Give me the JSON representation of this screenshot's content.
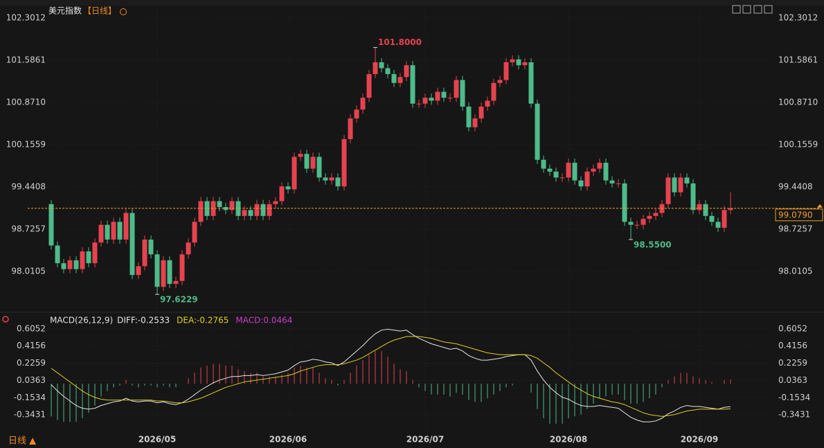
{
  "title": "美元指数",
  "title_tag": "【日线】",
  "period_label": "日线 ▲",
  "chart_data": [
    {
      "type": "candlestick",
      "categories": [
        null,
        null,
        null,
        null,
        null,
        null,
        null,
        null,
        null,
        null,
        null,
        null,
        null,
        null,
        null,
        null,
        null,
        "2026/05",
        null,
        null,
        null,
        null,
        null,
        null,
        null,
        null,
        null,
        null,
        null,
        null,
        null,
        null,
        null,
        null,
        null,
        null,
        null,
        null,
        "2026/06",
        null,
        null,
        null,
        null,
        null,
        null,
        null,
        null,
        null,
        null,
        null,
        null,
        null,
        null,
        null,
        null,
        null,
        null,
        null,
        null,
        null,
        "2026/07",
        null,
        null,
        null,
        null,
        null,
        null,
        null,
        null,
        null,
        null,
        null,
        null,
        null,
        null,
        null,
        null,
        null,
        null,
        null,
        null,
        null,
        null,
        "2026/08",
        null,
        null,
        null,
        null,
        null,
        null,
        null,
        null,
        null,
        null,
        null,
        null,
        null,
        null,
        null,
        null,
        null,
        null,
        null,
        null,
        "2026/09",
        null,
        null,
        null,
        null,
        null
      ],
      "open": [
        99.15,
        98.45,
        98.15,
        98.05,
        98.2,
        98.05,
        98.35,
        98.15,
        98.5,
        98.8,
        98.55,
        98.85,
        98.55,
        99.0,
        97.95,
        98.1,
        98.55,
        98.3,
        97.75,
        98.2,
        97.8,
        97.85,
        98.3,
        98.5,
        98.85,
        99.2,
        98.95,
        99.2,
        99.1,
        99.05,
        99.2,
        98.95,
        99.05,
        98.95,
        99.15,
        98.95,
        99.15,
        99.2,
        99.45,
        99.4,
        99.95,
        100.0,
        99.75,
        99.95,
        99.6,
        99.55,
        99.6,
        99.45,
        100.25,
        100.6,
        100.75,
        100.95,
        101.35,
        101.55,
        101.45,
        101.35,
        101.2,
        101.3,
        101.5,
        100.85,
        100.85,
        100.95,
        100.9,
        101.05,
        100.95,
        100.95,
        101.25,
        100.8,
        100.45,
        100.6,
        100.8,
        100.9,
        101.2,
        101.25,
        101.55,
        101.6,
        101.5,
        101.55,
        100.85,
        99.9,
        99.75,
        99.7,
        99.6,
        99.6,
        99.85,
        99.55,
        99.45,
        99.7,
        99.75,
        99.85,
        99.55,
        99.5,
        99.5,
        98.85,
        98.8,
        98.8,
        98.9,
        98.95,
        99.0,
        99.15,
        99.6,
        99.35,
        99.6,
        99.5,
        99.05,
        99.15,
        98.95,
        98.85,
        98.75,
        99.05
      ],
      "high": [
        99.22,
        98.52,
        98.22,
        98.27,
        98.27,
        98.42,
        98.42,
        98.57,
        98.87,
        98.87,
        98.92,
        98.92,
        99.07,
        99.07,
        98.17,
        98.62,
        98.62,
        98.37,
        98.27,
        98.27,
        97.92,
        98.37,
        98.57,
        98.92,
        99.27,
        99.27,
        99.27,
        99.27,
        99.17,
        99.27,
        99.27,
        99.12,
        99.12,
        99.22,
        99.22,
        99.22,
        99.27,
        99.52,
        99.52,
        100.02,
        100.07,
        100.07,
        100.02,
        100.02,
        99.67,
        99.67,
        99.67,
        100.32,
        100.67,
        100.82,
        101.02,
        101.42,
        101.8,
        101.62,
        101.52,
        101.42,
        101.37,
        101.57,
        101.57,
        100.92,
        101.02,
        101.02,
        101.12,
        101.12,
        101.02,
        101.32,
        101.32,
        100.87,
        100.67,
        100.87,
        100.97,
        101.27,
        101.32,
        101.62,
        101.67,
        101.67,
        101.62,
        101.62,
        100.92,
        99.97,
        99.82,
        99.77,
        99.67,
        99.92,
        99.92,
        99.62,
        99.77,
        99.82,
        99.92,
        99.92,
        99.62,
        99.57,
        99.57,
        98.92,
        98.87,
        98.97,
        99.02,
        99.07,
        99.22,
        99.67,
        99.67,
        99.67,
        99.67,
        99.57,
        99.22,
        99.22,
        99.02,
        98.92,
        99.12,
        99.35
      ],
      "low": [
        98.38,
        98.08,
        97.98,
        97.98,
        97.98,
        97.98,
        98.08,
        98.08,
        98.43,
        98.48,
        98.48,
        98.48,
        98.48,
        97.88,
        97.88,
        98.03,
        98.23,
        97.6229,
        97.68,
        97.73,
        97.73,
        97.78,
        98.23,
        98.43,
        98.78,
        98.88,
        98.88,
        99.03,
        98.98,
        98.98,
        98.88,
        98.88,
        98.88,
        98.88,
        98.88,
        98.88,
        99.08,
        99.13,
        99.33,
        99.33,
        99.88,
        99.68,
        99.68,
        99.53,
        99.48,
        99.48,
        99.38,
        99.38,
        100.18,
        100.53,
        100.68,
        100.88,
        101.28,
        101.38,
        101.28,
        101.13,
        101.13,
        101.23,
        100.78,
        100.78,
        100.78,
        100.83,
        100.83,
        100.88,
        100.88,
        100.88,
        100.73,
        100.38,
        100.38,
        100.53,
        100.73,
        100.83,
        101.13,
        101.18,
        101.48,
        101.43,
        101.43,
        100.78,
        99.83,
        99.68,
        99.63,
        99.53,
        99.53,
        99.53,
        99.48,
        99.38,
        99.38,
        99.63,
        99.68,
        99.48,
        99.43,
        99.43,
        98.78,
        98.55,
        98.73,
        98.73,
        98.83,
        98.88,
        98.93,
        99.08,
        99.28,
        99.28,
        99.43,
        98.98,
        98.98,
        98.88,
        98.78,
        98.68,
        98.68,
        98.98
      ],
      "close": [
        98.45,
        98.15,
        98.05,
        98.2,
        98.05,
        98.35,
        98.15,
        98.5,
        98.8,
        98.55,
        98.85,
        98.55,
        99.0,
        97.95,
        98.1,
        98.55,
        98.3,
        97.75,
        98.2,
        97.8,
        97.85,
        98.3,
        98.5,
        98.85,
        99.2,
        98.95,
        99.2,
        99.1,
        99.05,
        99.2,
        98.95,
        99.05,
        98.95,
        99.15,
        98.95,
        99.15,
        99.2,
        99.45,
        99.4,
        99.95,
        100.0,
        99.75,
        99.95,
        99.6,
        99.55,
        99.6,
        99.45,
        100.25,
        100.6,
        100.75,
        100.95,
        101.35,
        101.55,
        101.45,
        101.35,
        101.2,
        101.3,
        101.5,
        100.85,
        100.85,
        100.95,
        100.9,
        101.05,
        100.95,
        100.95,
        101.25,
        100.8,
        100.45,
        100.6,
        100.8,
        100.9,
        101.2,
        101.25,
        101.55,
        101.6,
        101.5,
        101.55,
        100.85,
        99.9,
        99.75,
        99.7,
        99.6,
        99.6,
        99.85,
        99.55,
        99.45,
        99.7,
        99.75,
        99.85,
        99.55,
        99.5,
        99.5,
        98.85,
        98.8,
        98.8,
        98.9,
        98.95,
        99.0,
        99.15,
        99.6,
        99.35,
        99.6,
        99.5,
        99.05,
        99.15,
        98.95,
        98.85,
        98.75,
        99.05,
        99.079
      ],
      "last_close_label": "99.0790",
      "up_color": "#e5434f",
      "down_color": "#4dbb8a",
      "last_color": "#f0a030",
      "annotations": [
        {
          "value": 101.8,
          "label": "101.8000",
          "color": "#e5434f"
        },
        {
          "value": 97.6229,
          "label": "97.6229",
          "color": "#4dbb8a"
        },
        {
          "value": 98.55,
          "label": "98.5500",
          "color": "#4dbb8a"
        }
      ],
      "ylim": [
        97.39,
        102.51
      ],
      "yticks": [
        102.3012,
        101.5861,
        {
          "value": 100.871,
          "label": "100.8710"
        },
        100.1559,
        99.4408,
        98.7257,
        98.0105
      ],
      "grid": true
    },
    {
      "type": "macd",
      "header": "MACD(26,12,9)",
      "up_color": "#e5434f",
      "down_color": "#4dbb8a",
      "series": [
        {
          "name": "DIFF:",
          "color": "#e8e8e8",
          "values": [
            -0.01,
            -0.08,
            -0.14,
            -0.19,
            -0.24,
            -0.27,
            -0.28,
            -0.27,
            -0.24,
            -0.22,
            -0.2,
            -0.19,
            -0.16,
            -0.19,
            -0.2,
            -0.19,
            -0.19,
            -0.21,
            -0.2,
            -0.22,
            -0.23,
            -0.21,
            -0.17,
            -0.12,
            -0.07,
            -0.03,
            0.01,
            0.04,
            0.06,
            0.08,
            0.08,
            0.09,
            0.09,
            0.1,
            0.09,
            0.1,
            0.11,
            0.13,
            0.15,
            0.2,
            0.24,
            0.25,
            0.27,
            0.26,
            0.24,
            0.23,
            0.2,
            0.24,
            0.3,
            0.36,
            0.42,
            0.49,
            0.55,
            0.59,
            0.6,
            0.59,
            0.58,
            0.59,
            0.54,
            0.5,
            0.47,
            0.44,
            0.42,
            0.4,
            0.38,
            0.39,
            0.36,
            0.31,
            0.28,
            0.26,
            0.26,
            0.27,
            0.28,
            0.3,
            0.31,
            0.32,
            0.32,
            0.26,
            0.14,
            0.04,
            -0.04,
            -0.1,
            -0.15,
            -0.17,
            -0.21,
            -0.24,
            -0.25,
            -0.25,
            -0.24,
            -0.25,
            -0.26,
            -0.27,
            -0.32,
            -0.37,
            -0.4,
            -0.42,
            -0.42,
            -0.41,
            -0.38,
            -0.33,
            -0.3,
            -0.26,
            -0.24,
            -0.25,
            -0.25,
            -0.26,
            -0.27,
            -0.28,
            -0.26,
            -0.2533
          ]
        },
        {
          "name": "DEA:",
          "color": "#e0d020",
          "values": [
            0.17,
            0.12,
            0.07,
            0.02,
            -0.03,
            -0.08,
            -0.12,
            -0.15,
            -0.17,
            -0.18,
            -0.18,
            -0.18,
            -0.18,
            -0.18,
            -0.18,
            -0.18,
            -0.18,
            -0.19,
            -0.19,
            -0.2,
            -0.21,
            -0.21,
            -0.2,
            -0.18,
            -0.16,
            -0.13,
            -0.1,
            -0.07,
            -0.04,
            -0.02,
            0.0,
            0.02,
            0.03,
            0.04,
            0.05,
            0.06,
            0.07,
            0.08,
            0.09,
            0.11,
            0.14,
            0.16,
            0.18,
            0.2,
            0.21,
            0.21,
            0.21,
            0.22,
            0.24,
            0.26,
            0.29,
            0.33,
            0.37,
            0.41,
            0.45,
            0.48,
            0.5,
            0.52,
            0.52,
            0.52,
            0.51,
            0.5,
            0.48,
            0.46,
            0.45,
            0.44,
            0.42,
            0.4,
            0.38,
            0.36,
            0.34,
            0.33,
            0.32,
            0.32,
            0.32,
            0.32,
            0.32,
            0.31,
            0.28,
            0.23,
            0.18,
            0.12,
            0.07,
            0.02,
            -0.03,
            -0.07,
            -0.11,
            -0.14,
            -0.16,
            -0.18,
            -0.2,
            -0.21,
            -0.23,
            -0.26,
            -0.29,
            -0.32,
            -0.34,
            -0.35,
            -0.36,
            -0.35,
            -0.34,
            -0.32,
            -0.3,
            -0.29,
            -0.28,
            -0.28,
            -0.28,
            -0.28,
            -0.28,
            -0.2765
          ]
        },
        {
          "name": "MACD:",
          "color": "#c83cc8",
          "values": [
            -0.36,
            -0.4,
            -0.42,
            -0.42,
            -0.42,
            -0.38,
            -0.32,
            -0.24,
            -0.14,
            -0.08,
            -0.04,
            -0.02,
            0.04,
            -0.02,
            -0.04,
            -0.02,
            -0.02,
            -0.04,
            -0.02,
            -0.04,
            -0.04,
            0.0,
            0.06,
            0.12,
            0.18,
            0.2,
            0.22,
            0.22,
            0.2,
            0.2,
            0.16,
            0.14,
            0.12,
            0.12,
            0.08,
            0.08,
            0.08,
            0.1,
            0.12,
            0.18,
            0.2,
            0.18,
            0.18,
            0.12,
            0.06,
            0.04,
            -0.02,
            0.04,
            0.12,
            0.2,
            0.26,
            0.32,
            0.36,
            0.36,
            0.3,
            0.22,
            0.16,
            0.14,
            0.04,
            -0.04,
            -0.08,
            -0.12,
            -0.12,
            -0.12,
            -0.14,
            -0.1,
            -0.12,
            -0.18,
            -0.2,
            -0.2,
            -0.16,
            -0.12,
            -0.08,
            -0.04,
            -0.02,
            0.0,
            0.0,
            -0.1,
            -0.28,
            -0.38,
            -0.44,
            -0.44,
            -0.44,
            -0.38,
            -0.36,
            -0.34,
            -0.28,
            -0.22,
            -0.16,
            -0.14,
            -0.12,
            -0.12,
            -0.18,
            -0.22,
            -0.22,
            -0.2,
            -0.16,
            -0.12,
            -0.04,
            0.04,
            0.08,
            0.12,
            0.12,
            0.08,
            0.06,
            0.04,
            0.02,
            0.0,
            0.04,
            0.0464
          ]
        }
      ],
      "ylim": [
        -0.54,
        0.68
      ],
      "yticks": [
        0.6052,
        0.4156,
        0.2259,
        0.0363,
        -0.1534,
        -0.3431
      ]
    }
  ]
}
